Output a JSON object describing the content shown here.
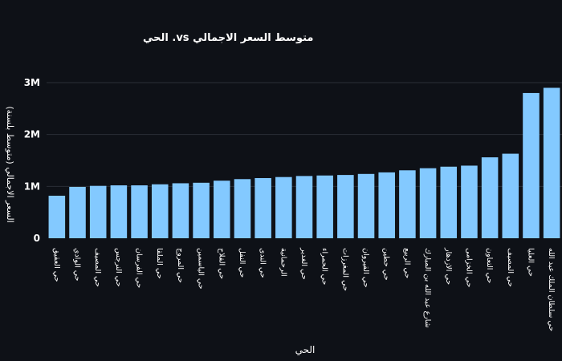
{
  "chart_data": {
    "type": "bar",
    "title": "متوسط السعر الاجمالي vs. الحي",
    "xlabel": "الحي",
    "ylabel": "السعر الاجمالي (متوسط بلسنة)",
    "ylim": [
      0,
      3300000
    ],
    "y_ticks": [
      0,
      1000000,
      2000000,
      3000000
    ],
    "y_tick_labels": [
      "0",
      "1M",
      "2M",
      "3M"
    ],
    "grid": "horizontal",
    "colors": {
      "bar": "#83c9ff",
      "background": "#0e1117",
      "grid": "#2a2e37",
      "text": "#ffffff"
    },
    "categories": [
      "حي العقيق",
      "حي الوادي",
      "حي المصيف",
      "حي النرجس",
      "حي الفرسان",
      "حي الملقا",
      "حي المروج",
      "حي الياسمين",
      "حي الفلاح",
      "حي النفل",
      "حي الندى",
      "الرحمانية",
      "حي الغدير",
      "حي الحمراء",
      "حي المغرزات",
      "حي القيروان",
      "حي حطين",
      "حي الربيع",
      "شارع عبد الله بن المبارك",
      "حي الازدهار",
      "حي الخزامى",
      "حي التعاون",
      "حي المصيف",
      "حي العليا",
      "حي سلطان الملك عبد الله"
    ],
    "values": [
      820000,
      990000,
      1010000,
      1020000,
      1020000,
      1040000,
      1060000,
      1070000,
      1110000,
      1140000,
      1160000,
      1180000,
      1200000,
      1210000,
      1220000,
      1240000,
      1270000,
      1310000,
      1350000,
      1380000,
      1400000,
      1560000,
      1630000,
      2800000,
      2900000
    ]
  }
}
